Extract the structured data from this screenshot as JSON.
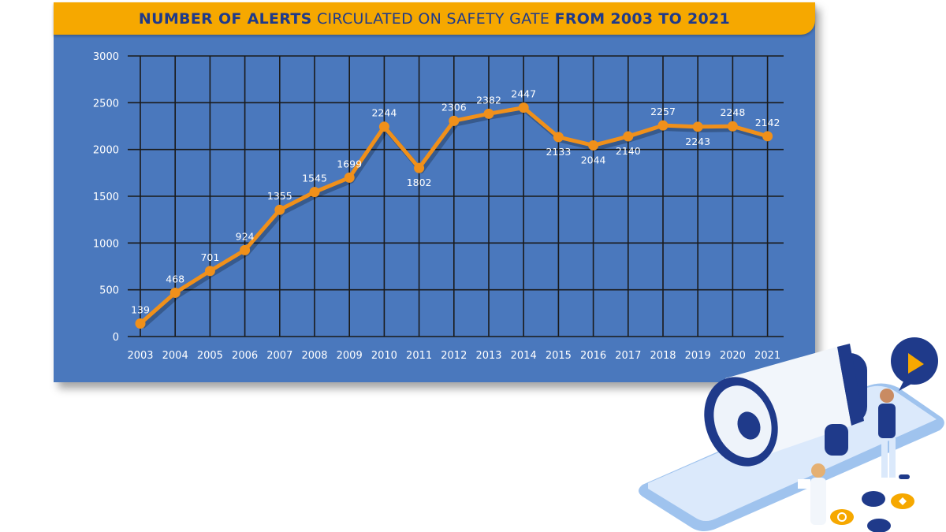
{
  "title": {
    "part1": "NUMBER OF ALERTS",
    "part2": " CIRCULATED ON SAFETY GATE ",
    "part3": "FROM 2003 TO 2021"
  },
  "colors": {
    "background": "#4a78bd",
    "title_bar": "#f6a800",
    "title_text": "#1f3a8a",
    "line": "#f0901a",
    "grid": "#1a1a1a",
    "labels": "#ffffff"
  },
  "chart_data": {
    "type": "line",
    "x": [
      "2003",
      "2004",
      "2005",
      "2006",
      "2007",
      "2008",
      "2009",
      "2010",
      "2011",
      "2012",
      "2013",
      "2014",
      "2015",
      "2016",
      "2017",
      "2018",
      "2019",
      "2020",
      "2021"
    ],
    "series": [
      {
        "values": [
          139,
          468,
          701,
          924,
          1355,
          1545,
          1699,
          2244,
          1802,
          2306,
          2382,
          2447,
          2133,
          2044,
          2140,
          2257,
          2243,
          2248,
          2142
        ]
      }
    ],
    "data_labels": [
      "139",
      "468",
      "701",
      "924",
      "1355",
      "1545",
      "1699",
      "2244",
      "1802",
      "2306",
      "2382",
      "2447",
      "2133",
      "2044",
      "2140",
      "2257",
      "2243",
      "2248",
      "2142"
    ],
    "label_position": [
      "above",
      "above",
      "above",
      "above",
      "above",
      "above",
      "above",
      "above",
      "below",
      "above",
      "above",
      "above",
      "below",
      "below",
      "below",
      "above",
      "below",
      "above",
      "above"
    ],
    "yticks": [
      0,
      500,
      1000,
      1500,
      2000,
      2500,
      3000
    ],
    "ytick_labels": [
      "0",
      "500",
      "1000",
      "1500",
      "2000",
      "2500",
      "3000"
    ],
    "ylim": [
      0,
      3000
    ],
    "grid": true,
    "legend": "none"
  },
  "illustration": {
    "description_icons": [
      "megaphone-icon",
      "play-bubble-icon",
      "chat-coin-icon",
      "like-coin-icon",
      "share-coin-icon"
    ]
  }
}
